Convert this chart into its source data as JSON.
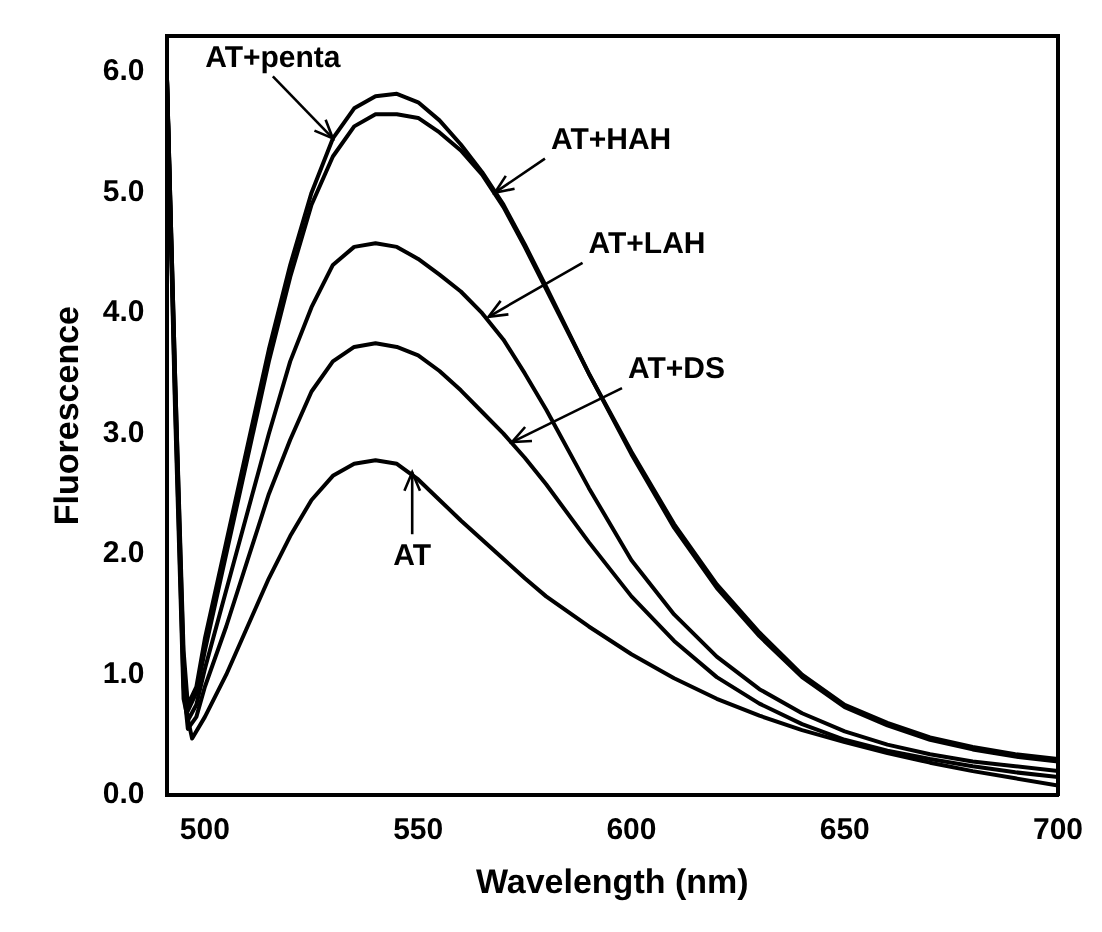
{
  "chart_data": {
    "type": "line",
    "xlabel": "Wavelength (nm)",
    "ylabel": "Fluorescence",
    "xlim": [
      491,
      700
    ],
    "xticks": [
      500,
      550,
      600,
      650,
      700
    ],
    "ylim": [
      0,
      6.3
    ],
    "yticks": [
      {
        "value": 0,
        "label": "0.0"
      },
      {
        "value": 1,
        "label": "1.0"
      },
      {
        "value": 2,
        "label": "2.0"
      },
      {
        "value": 3,
        "label": "3.0"
      },
      {
        "value": 4,
        "label": "4.0"
      },
      {
        "value": 5,
        "label": "5.0"
      },
      {
        "value": 6,
        "label": "6.0"
      }
    ],
    "grid": false,
    "legend": false,
    "marker": "none",
    "line_style": "solid",
    "series": [
      {
        "color": "#000000",
        "x": [
          491,
          493,
          495,
          496,
          498,
          500,
          505,
          510,
          515,
          520,
          525,
          530,
          535,
          540,
          545,
          550,
          555,
          560,
          565,
          570,
          575,
          580,
          590,
          600,
          610,
          620,
          630,
          640,
          650,
          660,
          670,
          680,
          690,
          700
        ],
        "values": [
          6.1,
          3.5,
          1.2,
          0.75,
          0.9,
          1.3,
          2.1,
          2.9,
          3.7,
          4.4,
          5.0,
          5.45,
          5.7,
          5.8,
          5.82,
          5.75,
          5.6,
          5.4,
          5.17,
          4.9,
          4.57,
          4.22,
          3.5,
          2.83,
          2.22,
          1.72,
          1.32,
          0.98,
          0.73,
          0.58,
          0.46,
          0.38,
          0.32,
          0.28
        ]
      },
      {
        "color": "#000000",
        "x": [
          491,
          493,
          495,
          496,
          498,
          500,
          505,
          510,
          515,
          520,
          525,
          530,
          535,
          540,
          545,
          550,
          555,
          560,
          565,
          570,
          575,
          580,
          590,
          600,
          610,
          620,
          630,
          640,
          650,
          660,
          670,
          680,
          690,
          700
        ],
        "values": [
          6.1,
          3.5,
          1.1,
          0.7,
          0.85,
          1.2,
          2.0,
          2.8,
          3.6,
          4.3,
          4.9,
          5.3,
          5.55,
          5.65,
          5.65,
          5.62,
          5.5,
          5.35,
          5.15,
          4.88,
          4.55,
          4.2,
          3.5,
          2.85,
          2.25,
          1.75,
          1.35,
          1.0,
          0.75,
          0.6,
          0.48,
          0.4,
          0.34,
          0.3
        ]
      },
      {
        "color": "#000000",
        "x": [
          491,
          493,
          495,
          496,
          498,
          500,
          505,
          510,
          515,
          520,
          525,
          530,
          535,
          540,
          545,
          550,
          555,
          560,
          565,
          570,
          575,
          580,
          590,
          600,
          610,
          620,
          630,
          640,
          650,
          660,
          670,
          680,
          690,
          700
        ],
        "values": [
          6.1,
          3.4,
          1.0,
          0.62,
          0.75,
          1.05,
          1.7,
          2.35,
          3.0,
          3.6,
          4.05,
          4.4,
          4.55,
          4.58,
          4.55,
          4.45,
          4.32,
          4.18,
          4.0,
          3.78,
          3.5,
          3.2,
          2.55,
          1.95,
          1.5,
          1.15,
          0.88,
          0.68,
          0.53,
          0.42,
          0.34,
          0.28,
          0.24,
          0.2
        ]
      },
      {
        "color": "#000000",
        "x": [
          491,
          493,
          495,
          496,
          498,
          500,
          505,
          510,
          515,
          520,
          525,
          530,
          535,
          540,
          545,
          550,
          555,
          560,
          565,
          570,
          575,
          580,
          590,
          600,
          610,
          620,
          630,
          640,
          650,
          660,
          670,
          680,
          690,
          700
        ],
        "values": [
          6.1,
          3.3,
          0.9,
          0.55,
          0.65,
          0.9,
          1.4,
          1.95,
          2.5,
          2.95,
          3.35,
          3.6,
          3.72,
          3.75,
          3.72,
          3.65,
          3.52,
          3.36,
          3.18,
          3.0,
          2.8,
          2.58,
          2.1,
          1.65,
          1.28,
          0.98,
          0.76,
          0.59,
          0.46,
          0.37,
          0.3,
          0.24,
          0.19,
          0.15
        ]
      },
      {
        "color": "#000000",
        "x": [
          491,
          493,
          495,
          497,
          500,
          505,
          510,
          515,
          520,
          525,
          530,
          535,
          540,
          545,
          550,
          555,
          560,
          565,
          570,
          575,
          580,
          590,
          600,
          610,
          620,
          630,
          640,
          650,
          660,
          670,
          680,
          690,
          700
        ],
        "values": [
          6.1,
          3.2,
          0.8,
          0.47,
          0.65,
          1.0,
          1.4,
          1.8,
          2.15,
          2.45,
          2.65,
          2.75,
          2.78,
          2.75,
          2.62,
          2.45,
          2.28,
          2.12,
          1.96,
          1.8,
          1.65,
          1.4,
          1.17,
          0.97,
          0.8,
          0.66,
          0.54,
          0.44,
          0.35,
          0.27,
          0.2,
          0.14,
          0.08
        ]
      }
    ],
    "annotations": [
      {
        "text": "AT+penta",
        "x": 530,
        "y": 5.45
      },
      {
        "text": "AT+HAH",
        "x": 568,
        "y": 5.0
      },
      {
        "text": "AT+LAH",
        "x": 566.5,
        "y": 3.97
      },
      {
        "text": "AT+DS",
        "x": 572,
        "y": 2.93
      },
      {
        "text": "AT",
        "x": 548.6,
        "y": 2.68
      }
    ]
  }
}
